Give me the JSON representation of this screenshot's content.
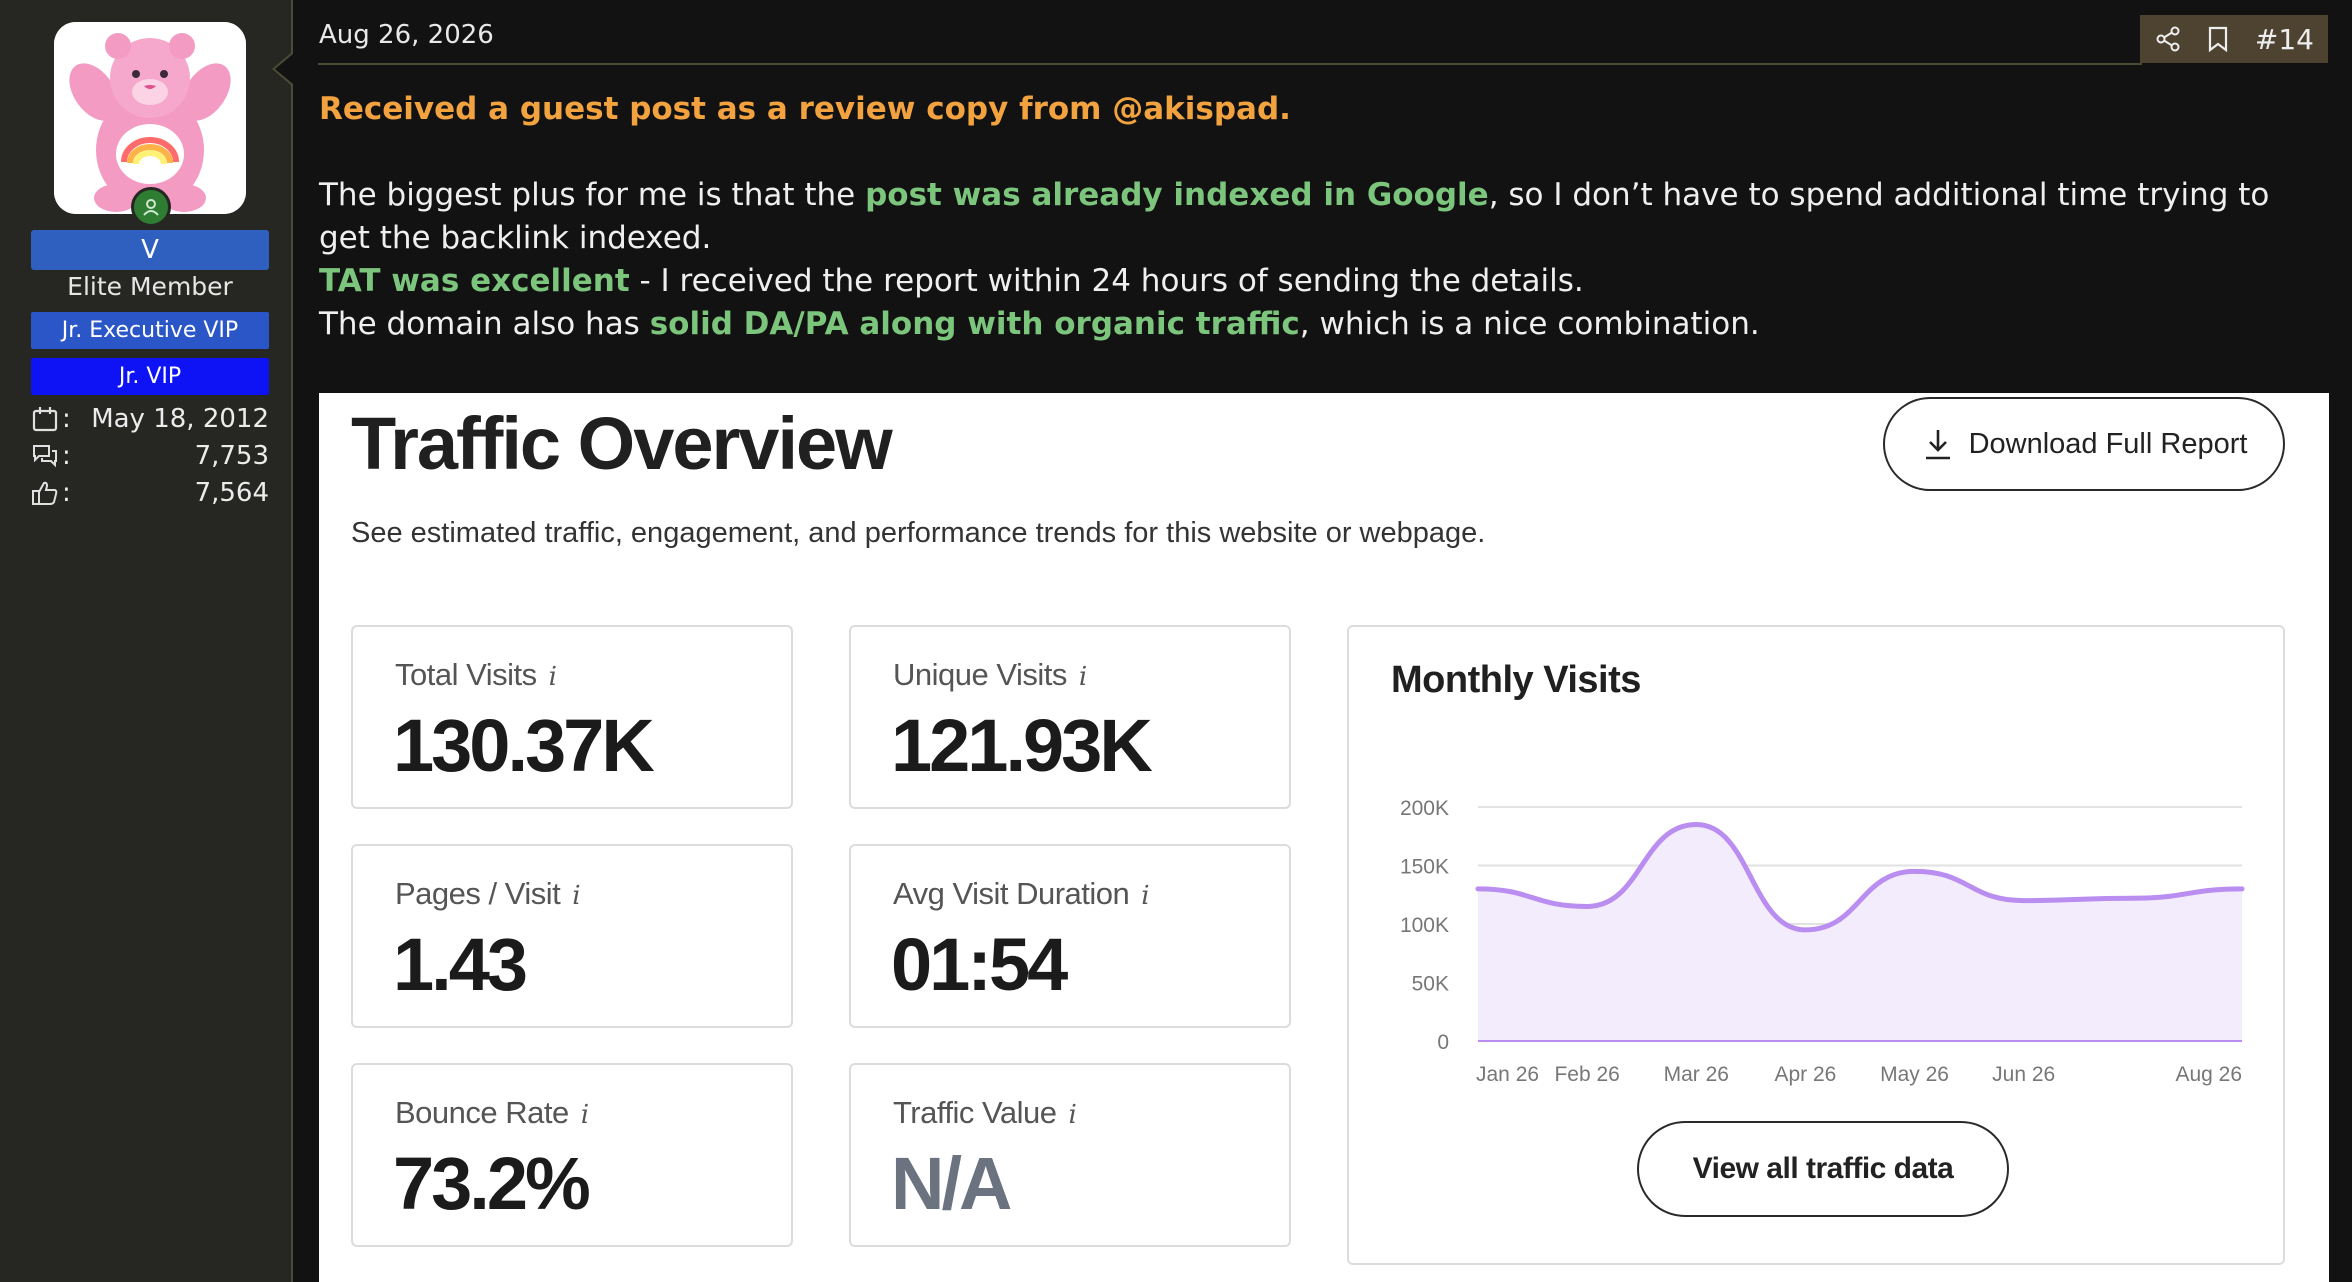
{
  "user": {
    "username": "V",
    "title": "Elite Member",
    "badges": [
      "Jr. Executive VIP",
      "Jr. VIP"
    ],
    "stats": [
      {
        "icon": "calendar-icon",
        "value": "May 18, 2012"
      },
      {
        "icon": "messages-icon",
        "value": "7,753"
      },
      {
        "icon": "thumbs-up-icon",
        "value": "7,564"
      }
    ],
    "colon": ":"
  },
  "post": {
    "date": "Aug 26, 2026",
    "number": "#14",
    "intro": "Received a guest post as a review copy from @akispad.",
    "p1_a": "The biggest plus for me is that the ",
    "p1_hl": "post was already indexed in Google",
    "p1_b": ", so I don’t have to spend additional time trying to get the backlink indexed.",
    "p2_hl": "TAT was excellent",
    "p2_b": " - I received the report within 24 hours of sending the details.",
    "p3_a": "The domain also has ",
    "p3_hl": "solid DA/PA along with organic traffic",
    "p3_b": ", which is a nice combination."
  },
  "report": {
    "title": "Traffic Overview",
    "subtitle": "See estimated traffic, engagement, and performance trends for this website or webpage.",
    "download_label": "Download Full Report",
    "info_glyph": "i",
    "metrics": [
      {
        "label": "Total Visits",
        "value": "130.37K"
      },
      {
        "label": "Unique Visits",
        "value": "121.93K"
      },
      {
        "label": "Pages / Visit",
        "value": "1.43"
      },
      {
        "label": "Avg Visit Duration",
        "value": "01:54"
      },
      {
        "label": "Bounce Rate",
        "value": "73.2%"
      },
      {
        "label": "Traffic Value",
        "value": "N/A"
      }
    ],
    "view_all_label": "View all traffic data"
  },
  "chart_data": {
    "type": "area",
    "title": "Monthly Visits",
    "x": [
      "Jan 26",
      "Feb 26",
      "Mar 26",
      "Apr 26",
      "May 26",
      "Jun 26",
      "Jul 26",
      "Aug 26"
    ],
    "x_tick_labels": [
      "Jan 26",
      "Feb 26",
      "Mar 26",
      "Apr 26",
      "May 26",
      "Jun 26",
      "Aug 26"
    ],
    "values": [
      130000,
      115000,
      185000,
      95000,
      145000,
      120000,
      122000,
      130000
    ],
    "yticks": [
      0,
      50000,
      100000,
      150000,
      200000
    ],
    "ytick_labels": [
      "0",
      "50K",
      "100K",
      "150K",
      "200K"
    ],
    "ylim": [
      0,
      200000
    ],
    "grid": true,
    "colors": {
      "line": "#b98ef0",
      "fill": "#f3ecfd",
      "grid": "#e2e2e2"
    }
  },
  "colors": {
    "accent_orange": "#f2a33f",
    "accent_green": "#7cc57c",
    "username_bg": "#2f5fbf",
    "badge_exec": "#2a56c8",
    "badge_vip": "#0d13f5"
  }
}
